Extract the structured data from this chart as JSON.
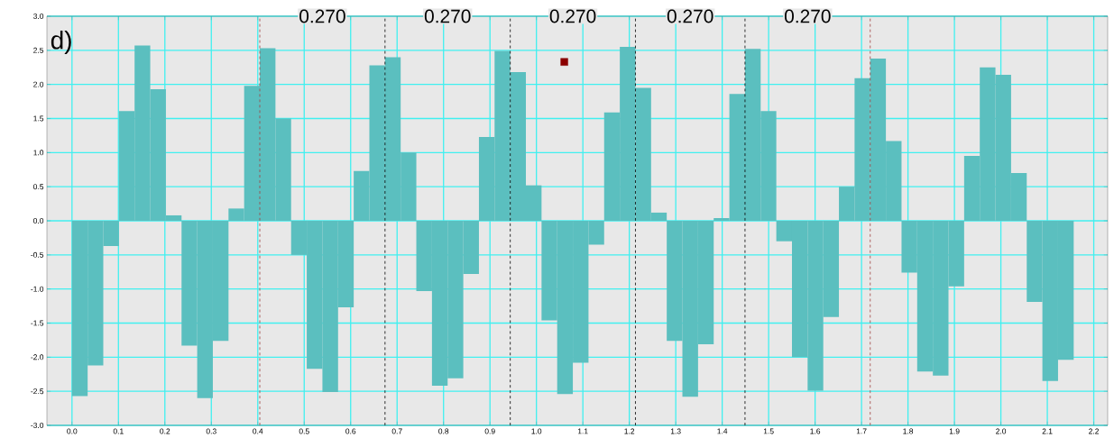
{
  "chart_data": {
    "type": "histogram",
    "bins": [
      0,
      0.0337,
      0.0674,
      0.1011,
      0.1348,
      0.1685,
      0.2022,
      0.2359,
      0.2696,
      0.3033,
      0.337,
      0.3707,
      0.4044,
      0.4381,
      0.4718,
      0.5055,
      0.5392,
      0.5729,
      0.6066,
      0.6403,
      0.674,
      0.7077,
      0.7414,
      0.7751,
      0.8088,
      0.8425,
      0.8762,
      0.9099,
      0.9436,
      0.9773,
      1.011,
      1.0447,
      1.0784,
      1.1121,
      1.1458,
      1.1795,
      1.2132,
      1.2469,
      1.2806,
      1.3143,
      1.348,
      1.3817,
      1.4154,
      1.4491,
      1.4828,
      1.5165,
      1.5502,
      1.5839,
      1.6176,
      1.6513,
      1.685,
      1.7187,
      1.7524,
      1.7861,
      1.8198,
      1.8535,
      1.8872,
      1.9209,
      1.9546,
      1.9883,
      2.022,
      2.0557,
      2.0894,
      2.1231,
      2.1568
    ],
    "values": [
      -2.57,
      -2.12,
      -0.37,
      1.61,
      2.57,
      1.93,
      0.08,
      -1.83,
      -2.6,
      -1.76,
      0.18,
      1.98,
      2.53,
      1.5,
      -0.5,
      -2.17,
      -2.51,
      -1.27,
      0.73,
      2.28,
      2.4,
      1.0,
      -1.03,
      -2.42,
      -2.31,
      -0.78,
      1.23,
      2.49,
      2.18,
      0.52,
      -1.46,
      -2.54,
      -2.08,
      -0.35,
      1.59,
      2.55,
      1.95,
      0.12,
      -1.76,
      -2.58,
      -1.81,
      0.04,
      1.86,
      2.52,
      1.61,
      -0.3,
      -2.0,
      -2.49,
      -1.41,
      0.5,
      2.09,
      2.38,
      1.17,
      -0.76,
      -2.21,
      -2.27,
      -0.96,
      0.95,
      2.25,
      2.14,
      0.7,
      -1.19,
      -2.35,
      -2.04
    ],
    "color": "#5bbfbf",
    "series": [
      {
        "type": "scatter",
        "x": [
          1.06
        ],
        "values": [
          2.33
        ],
        "color": "#8b0000",
        "marker": "square"
      }
    ],
    "xlim": [
      -0.054,
      2.23
    ],
    "ylim": [
      -3.0,
      3.0
    ],
    "xticks": [
      {
        "value": 0,
        "label": "0.0"
      },
      {
        "value": 0.1,
        "label": "0.1"
      },
      {
        "value": 0.2,
        "label": "0.2"
      },
      {
        "value": 0.3,
        "label": "0.3"
      },
      {
        "value": 0.4,
        "label": "0.4"
      },
      {
        "value": 0.5,
        "label": "0.5"
      },
      {
        "value": 0.6,
        "label": "0.6"
      },
      {
        "value": 0.7,
        "label": "0.7"
      },
      {
        "value": 0.8,
        "label": "0.8"
      },
      {
        "value": 0.9,
        "label": "0.9"
      },
      {
        "value": 1.0,
        "label": "1.0"
      },
      {
        "value": 1.1,
        "label": "1.1"
      },
      {
        "value": 1.2,
        "label": "1.2"
      },
      {
        "value": 1.3,
        "label": "1.3"
      },
      {
        "value": 1.4,
        "label": "1.4"
      },
      {
        "value": 1.5,
        "label": "1.5"
      },
      {
        "value": 1.6,
        "label": "1.6"
      },
      {
        "value": 1.7,
        "label": "1.7"
      },
      {
        "value": 1.8,
        "label": "1.8"
      },
      {
        "value": 1.9,
        "label": "1.9"
      },
      {
        "value": 2.0,
        "label": "2.0"
      },
      {
        "value": 2.1,
        "label": "2.1"
      },
      {
        "value": 2.2,
        "label": "2.2"
      }
    ],
    "yticks": [
      {
        "value": -3.0,
        "label": "-3.0"
      },
      {
        "value": -2.5,
        "label": "-2.5"
      },
      {
        "value": -2.0,
        "label": "-2.0"
      },
      {
        "value": -1.5,
        "label": "-1.5"
      },
      {
        "value": -1.0,
        "label": "-1.0"
      },
      {
        "value": -0.5,
        "label": "-0.5"
      },
      {
        "value": 0,
        "label": "0.0"
      },
      {
        "value": 0.5,
        "label": "0.5"
      },
      {
        "value": 1.0,
        "label": "1.0"
      },
      {
        "value": 1.5,
        "label": "1.5"
      },
      {
        "value": 2.0,
        "label": "2.0"
      },
      {
        "value": 2.5,
        "label": "2.5"
      },
      {
        "value": 3.0,
        "label": "3.0"
      }
    ],
    "grid": true,
    "ref_lines": [
      {
        "axis": "x",
        "value": 0.4044,
        "color": "#a0403f",
        "line_style": "dashed"
      },
      {
        "axis": "x",
        "value": 0.674,
        "color": "#000000",
        "line_style": "dashed"
      },
      {
        "axis": "x",
        "value": 0.9436,
        "color": "#000000",
        "line_style": "dashed"
      },
      {
        "axis": "x",
        "value": 1.2132,
        "color": "#000000",
        "line_style": "dashed"
      },
      {
        "axis": "x",
        "value": 1.4491,
        "color": "#000000",
        "line_style": "dashed"
      },
      {
        "axis": "x",
        "value": 1.7187,
        "color": "#a0403f",
        "line_style": "dashed"
      }
    ],
    "annotations": [
      "d)",
      "0.270",
      "0.270",
      "0.270",
      "0.270",
      "0.270"
    ]
  }
}
